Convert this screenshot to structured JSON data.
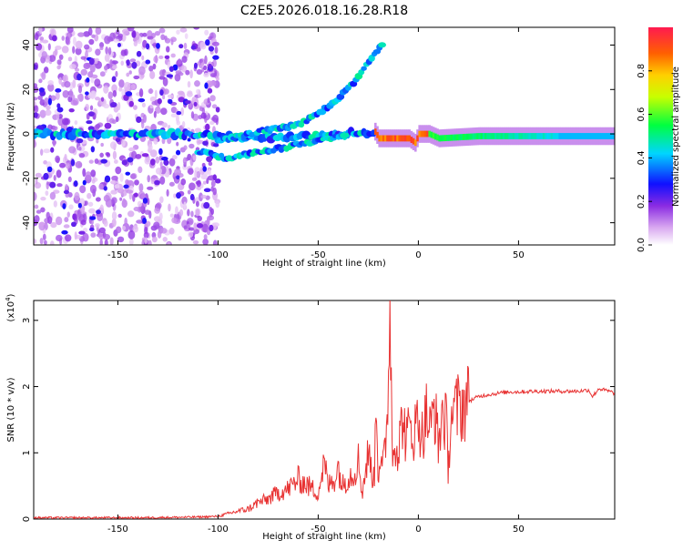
{
  "title": "C2E5.2026.018.16.28.R18",
  "chart_data": [
    {
      "type": "heatmap",
      "title": "C2E5.2026.018.16.28.R18",
      "xlabel": "Height of straight line (km)",
      "ylabel": "Frequency (Hz)",
      "xlim": [
        -192,
        98
      ],
      "ylim": [
        -50,
        48
      ],
      "xticks": [
        -150,
        -100,
        -50,
        0,
        50
      ],
      "yticks": [
        -40,
        -20,
        0,
        20,
        40
      ],
      "colorbar": {
        "label": "Normalized spectral amplitude",
        "range": [
          0,
          1
        ],
        "ticks": [
          0.0,
          0.2,
          0.4,
          0.6,
          0.8
        ],
        "tick_labels": [
          "0.0",
          "0.2",
          "0.4",
          "0.6",
          "0.8"
        ]
      },
      "features": [
        {
          "name": "carrier",
          "points": [
            [
              -192,
              0
            ],
            [
              -120,
              0
            ],
            [
              -100,
              -1
            ],
            [
              -80,
              -2
            ],
            [
              -60,
              -1
            ],
            [
              -40,
              0
            ],
            [
              -22,
              1
            ],
            [
              -20,
              -2
            ],
            [
              -5,
              -2
            ],
            [
              -2,
              -4
            ],
            [
              0,
              0
            ],
            [
              5,
              0
            ],
            [
              10,
              -2
            ],
            [
              30,
              -1
            ],
            [
              60,
              -1
            ],
            [
              98,
              -1
            ]
          ]
        },
        {
          "name": "upper-doppler-branch",
          "points": [
            [
              -100,
              -3
            ],
            [
              -80,
              1
            ],
            [
              -60,
              4
            ],
            [
              -50,
              9
            ],
            [
              -40,
              16
            ],
            [
              -30,
              25
            ],
            [
              -25,
              32
            ],
            [
              -17,
              42
            ]
          ]
        },
        {
          "name": "lower-doppler-branch",
          "points": [
            [
              -110,
              -8
            ],
            [
              -95,
              -11
            ],
            [
              -80,
              -8
            ],
            [
              -60,
              -5
            ],
            [
              -45,
              -2
            ],
            [
              -35,
              0
            ]
          ]
        }
      ]
    },
    {
      "type": "line",
      "xlabel": "Height of straight line (km)",
      "ylabel": "SNR (10 * v/v)",
      "scale_label": "(x10",
      "scale_exp": "4",
      "xlim": [
        -192,
        98
      ],
      "ylim": [
        0,
        3.3
      ],
      "xticks": [
        -150,
        -100,
        -50,
        0,
        50
      ],
      "yticks": [
        0,
        1,
        2,
        3
      ],
      "color": "#e83232",
      "series": [
        {
          "name": "SNR",
          "x": [
            -192,
            -140,
            -110,
            -100,
            -95,
            -90,
            -85,
            -80,
            -75,
            -70,
            -65,
            -60,
            -55,
            -50,
            -47,
            -45,
            -42,
            -40,
            -38,
            -35,
            -32,
            -30,
            -28,
            -25,
            -22,
            -21,
            -20,
            -19,
            -18,
            -16,
            -14,
            -13,
            -12,
            -10,
            -8,
            -6,
            -4,
            -2,
            0,
            2,
            4,
            6,
            8,
            10,
            12,
            14,
            15,
            16,
            18,
            20,
            22,
            25,
            28,
            30,
            35,
            40,
            45,
            50,
            60,
            70,
            80,
            85,
            87,
            90,
            95,
            98
          ],
          "y": [
            0.02,
            0.02,
            0.03,
            0.04,
            0.08,
            0.12,
            0.15,
            0.25,
            0.3,
            0.4,
            0.45,
            0.6,
            0.5,
            0.4,
            0.85,
            0.5,
            0.6,
            0.8,
            0.5,
            0.65,
            0.7,
            0.9,
            0.4,
            1.0,
            0.55,
            2.05,
            0.6,
            1.0,
            0.7,
            1.2,
            3.3,
            0.8,
            1.3,
            1.0,
            1.55,
            1.2,
            1.4,
            1.3,
            1.55,
            1.25,
            1.6,
            1.3,
            1.75,
            1.1,
            1.65,
            1.4,
            0.65,
            1.6,
            1.6,
            1.68,
            1.72,
            1.78,
            1.82,
            1.85,
            1.88,
            1.9,
            1.92,
            1.92,
            1.93,
            1.93,
            1.93,
            1.95,
            1.85,
            1.97,
            1.93,
            1.9
          ]
        }
      ]
    }
  ]
}
